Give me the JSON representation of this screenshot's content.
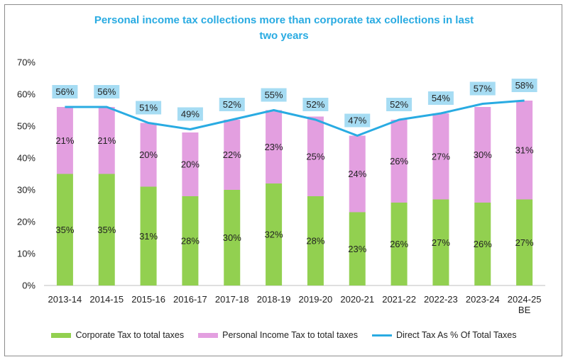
{
  "chart_data": {
    "type": "bar",
    "title_lines": [
      "Personal income tax collections  more than corporate tax collections in last",
      "two years"
    ],
    "categories": [
      [
        "2013-14"
      ],
      [
        "2014-15"
      ],
      [
        "2015-16"
      ],
      [
        "2016-17"
      ],
      [
        "2017-18"
      ],
      [
        "2018-19"
      ],
      [
        "2019-20"
      ],
      [
        "2020-21"
      ],
      [
        "2021-22"
      ],
      [
        "2022-23"
      ],
      [
        "2023-24"
      ],
      [
        "2024-25",
        "BE"
      ]
    ],
    "ylim": [
      0,
      70
    ],
    "y_ticks": [
      0,
      10,
      20,
      30,
      40,
      50,
      60,
      70
    ],
    "y_tick_suffix": "%",
    "series": [
      {
        "name": "Corporate Tax to total taxes",
        "kind": "bar",
        "color": "#92d050",
        "values": [
          35,
          35,
          31,
          28,
          30,
          32,
          28,
          23,
          26,
          27,
          26,
          27
        ],
        "labels": [
          "35%",
          "35%",
          "31%",
          "28%",
          "30%",
          "32%",
          "28%",
          "23%",
          "26%",
          "27%",
          "26%",
          "27%"
        ]
      },
      {
        "name": "Personal Income Tax to total taxes",
        "kind": "bar",
        "color": "#e39fe0",
        "values": [
          21,
          21,
          20,
          20,
          22,
          23,
          25,
          24,
          26,
          27,
          30,
          31
        ],
        "labels": [
          "21%",
          "21%",
          "20%",
          "20%",
          "22%",
          "23%",
          "25%",
          "24%",
          "26%",
          "27%",
          "30%",
          "31%"
        ]
      },
      {
        "name": "Direct Tax As % Of Total Taxes",
        "kind": "line",
        "color": "#29abe2",
        "values": [
          56,
          56,
          51,
          49,
          52,
          55,
          52,
          47,
          52,
          54,
          57,
          58
        ],
        "labels": [
          "56%",
          "56%",
          "51%",
          "49%",
          "52%",
          "55%",
          "52%",
          "47%",
          "52%",
          "54%",
          "57%",
          "58%"
        ],
        "label_bg": "#a6dcf3"
      }
    ],
    "legend_position": "bottom",
    "grid": false
  }
}
